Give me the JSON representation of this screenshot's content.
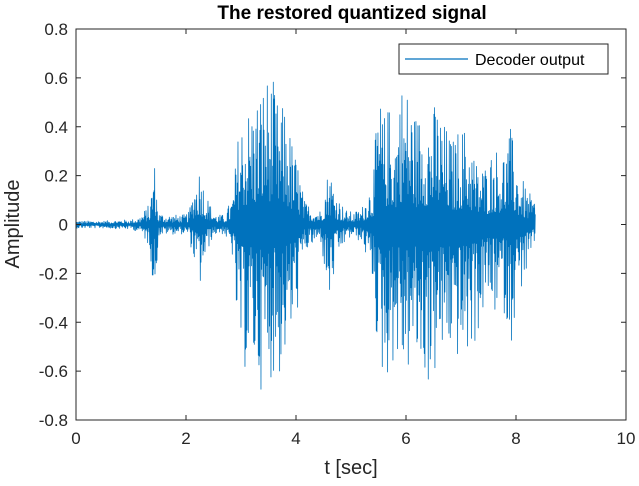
{
  "chart_data": {
    "type": "line",
    "title": "The restored quantized signal",
    "xlabel": "t [sec]",
    "ylabel": "Amplitude",
    "xlim": [
      0,
      10
    ],
    "ylim": [
      -0.8,
      0.8
    ],
    "x_ticks": [
      0,
      2,
      4,
      6,
      8,
      10
    ],
    "y_ticks": [
      -0.8,
      -0.6,
      -0.4,
      -0.2,
      0,
      0.2,
      0.4,
      0.6,
      0.8
    ],
    "x_tick_labels": [
      "0",
      "2",
      "4",
      "6",
      "8",
      "10"
    ],
    "y_tick_labels": [
      "-0.8",
      "-0.6",
      "-0.4",
      "-0.2",
      "0",
      "0.2",
      "0.4",
      "0.6",
      "0.8"
    ],
    "grid": false,
    "box": true,
    "legend_position": "top-right",
    "series": [
      {
        "name": "Decoder output",
        "color": "#0072BD",
        "x_range": [
          0,
          8.35
        ],
        "envelope": {
          "t": [
            0,
            0.5,
            1.0,
            1.15,
            1.25,
            1.35,
            1.42,
            1.5,
            1.65,
            1.8,
            1.95,
            2.05,
            2.15,
            2.25,
            2.35,
            2.45,
            2.55,
            2.7,
            2.85,
            2.95,
            3.05,
            3.2,
            3.35,
            3.45,
            3.55,
            3.7,
            3.8,
            3.95,
            4.05,
            4.15,
            4.3,
            4.45,
            4.6,
            4.75,
            4.9,
            5.05,
            5.2,
            5.3,
            5.4,
            5.5,
            5.6,
            5.7,
            5.8,
            5.9,
            6.0,
            6.1,
            6.2,
            6.35,
            6.45,
            6.55,
            6.7,
            6.85,
            7.0,
            7.15,
            7.3,
            7.45,
            7.6,
            7.75,
            7.9,
            8.05,
            8.2,
            8.35
          ],
          "pos": [
            0.015,
            0.015,
            0.02,
            0.03,
            0.06,
            0.09,
            0.29,
            0.05,
            0.04,
            0.04,
            0.04,
            0.05,
            0.17,
            0.25,
            0.14,
            0.08,
            0.04,
            0.04,
            0.12,
            0.38,
            0.48,
            0.5,
            0.57,
            0.62,
            0.62,
            0.47,
            0.5,
            0.32,
            0.25,
            0.1,
            0.07,
            0.06,
            0.25,
            0.12,
            0.06,
            0.05,
            0.07,
            0.14,
            0.2,
            0.55,
            0.45,
            0.5,
            0.4,
            0.6,
            0.58,
            0.52,
            0.45,
            0.5,
            0.45,
            0.52,
            0.42,
            0.35,
            0.42,
            0.38,
            0.25,
            0.25,
            0.33,
            0.3,
            0.4,
            0.22,
            0.14,
            0.1
          ],
          "neg": [
            -0.015,
            -0.015,
            -0.02,
            -0.03,
            -0.06,
            -0.1,
            -0.36,
            -0.05,
            -0.04,
            -0.04,
            -0.04,
            -0.05,
            -0.16,
            -0.27,
            -0.15,
            -0.07,
            -0.04,
            -0.04,
            -0.14,
            -0.55,
            -0.6,
            -0.6,
            -0.67,
            -0.7,
            -0.62,
            -0.64,
            -0.55,
            -0.45,
            -0.33,
            -0.12,
            -0.09,
            -0.07,
            -0.35,
            -0.15,
            -0.07,
            -0.05,
            -0.08,
            -0.15,
            -0.25,
            -0.6,
            -0.65,
            -0.62,
            -0.55,
            -0.6,
            -0.65,
            -0.57,
            -0.6,
            -0.65,
            -0.68,
            -0.62,
            -0.55,
            -0.53,
            -0.58,
            -0.55,
            -0.47,
            -0.33,
            -0.38,
            -0.33,
            -0.5,
            -0.3,
            -0.2,
            -0.1
          ]
        }
      }
    ]
  }
}
